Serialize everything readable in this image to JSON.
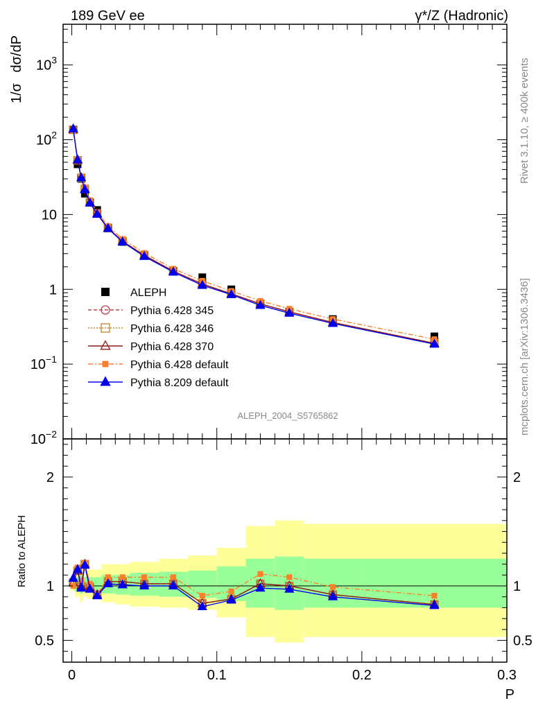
{
  "header": {
    "left": "189 GeV ee",
    "right": "γ*/Z (Hadronic)"
  },
  "side_labels": {
    "rivet": "Rivet 3.1.10, ≥ 400k events",
    "mcplots": "mcplots.cern.ch [arXiv:1306.3436]"
  },
  "analysis_tag": "ALEPH_2004_S5765862",
  "colors": {
    "aleph": "#000000",
    "p345": "#c0404a",
    "p346": "#b8862b",
    "p370": "#8b1a1a",
    "p6def": "#ff7f2a",
    "p8def": "#0000ee",
    "band_yellow": "#ffff99",
    "band_green": "#99ff99"
  },
  "chart_data": [
    {
      "type": "line",
      "panel": "main",
      "ylabel_prefix": "1/σ",
      "ylabel_main": "dσ/dP",
      "yscale": "log",
      "ylim": [
        0.01,
        3500
      ],
      "xlim": [
        -0.006,
        0.3
      ],
      "ytick_labels": [
        {
          "v": 1000,
          "base": "10",
          "exp": "3"
        },
        {
          "v": 100,
          "base": "10",
          "exp": "2"
        },
        {
          "v": 10,
          "base": "10",
          "exp": ""
        },
        {
          "v": 1,
          "base": "1",
          "exp": ""
        },
        {
          "v": 0.1,
          "base": "10",
          "exp": "−1"
        },
        {
          "v": 0.01,
          "base": "10",
          "exp": "−2"
        }
      ],
      "legend_position": "lower-left",
      "x": [
        0.001,
        0.004,
        0.0065,
        0.009,
        0.0125,
        0.0175,
        0.025,
        0.035,
        0.05,
        0.07,
        0.09,
        0.11,
        0.13,
        0.15,
        0.18,
        0.25
      ],
      "series": [
        {
          "name": "ALEPH",
          "key": "aleph",
          "marker": "square-filled",
          "values": [
            135,
            47,
            30,
            19,
            14.5,
            11.5,
            6.5,
            4.3,
            2.8,
            1.75,
            1.45,
            1.0,
            0.63,
            0.5,
            0.4,
            0.235
          ]
        },
        {
          "name": "Pythia 6.428 345",
          "key": "p345",
          "marker": "circle-open",
          "dash": "5,3",
          "values": [
            136,
            53,
            31,
            22,
            14.5,
            10.3,
            6.6,
            4.4,
            2.85,
            1.75,
            1.18,
            0.87,
            0.64,
            0.5,
            0.36,
            0.19
          ]
        },
        {
          "name": "Pythia 6.428 346",
          "key": "p346",
          "marker": "square-open",
          "dash": "2,2",
          "values": [
            136,
            53,
            31,
            22,
            14.5,
            10.3,
            6.6,
            4.4,
            2.85,
            1.75,
            1.18,
            0.87,
            0.64,
            0.5,
            0.36,
            0.19
          ]
        },
        {
          "name": "Pythia 6.428 370",
          "key": "p370",
          "marker": "triangle-open",
          "dash": "",
          "values": [
            136,
            53,
            31,
            22,
            14.5,
            10.3,
            6.6,
            4.4,
            2.85,
            1.75,
            1.18,
            0.87,
            0.64,
            0.5,
            0.36,
            0.19
          ]
        },
        {
          "name": "Pythia 6.428 default",
          "key": "p6def",
          "marker": "square-small-filled",
          "dash": "7,3,2,3",
          "values": [
            133,
            55,
            32,
            23,
            15.5,
            10.8,
            7.0,
            4.7,
            3.05,
            1.88,
            1.3,
            0.95,
            0.7,
            0.55,
            0.4,
            0.215
          ]
        },
        {
          "name": "Pythia 8.209 default",
          "key": "p8def",
          "marker": "triangle-filled",
          "dash": "",
          "values": [
            140,
            54,
            31,
            21.5,
            14.3,
            10.1,
            6.5,
            4.3,
            2.75,
            1.7,
            1.13,
            0.85,
            0.61,
            0.48,
            0.35,
            0.185
          ]
        }
      ]
    },
    {
      "type": "line",
      "panel": "ratio",
      "xlabel": "P",
      "ylabel": "Ratio to ALEPH",
      "ylim": [
        0.3,
        2.35
      ],
      "xlim": [
        -0.006,
        0.3
      ],
      "yticks": [
        0.5,
        1,
        2
      ],
      "ytick_labels": [
        "0.5",
        "1",
        "2"
      ],
      "xticks": [
        0,
        0.1,
        0.2,
        0.3
      ],
      "xtick_labels": [
        "0",
        "0.1",
        "0.2",
        "0.3"
      ],
      "reference_line": 1,
      "bands": {
        "x_edges": [
          0.0,
          0.002,
          0.0055,
          0.0075,
          0.0105,
          0.0145,
          0.0205,
          0.03,
          0.04,
          0.06,
          0.08,
          0.1,
          0.12,
          0.14,
          0.16,
          0.2,
          0.3
        ],
        "yellow_low": [
          0.95,
          0.9,
          0.85,
          0.9,
          0.88,
          0.88,
          0.85,
          0.83,
          0.81,
          0.8,
          0.78,
          0.71,
          0.53,
          0.48,
          0.53,
          0.53
        ],
        "yellow_high": [
          1.05,
          1.15,
          1.2,
          1.15,
          1.15,
          1.15,
          1.2,
          1.2,
          1.22,
          1.25,
          1.28,
          1.35,
          1.55,
          1.6,
          1.57,
          1.57
        ],
        "green_low": [
          0.98,
          0.95,
          0.93,
          0.95,
          0.94,
          0.93,
          0.93,
          0.92,
          0.91,
          0.9,
          0.89,
          0.86,
          0.8,
          0.78,
          0.8,
          0.8
        ],
        "green_high": [
          1.02,
          1.08,
          1.1,
          1.08,
          1.08,
          1.08,
          1.1,
          1.1,
          1.12,
          1.13,
          1.14,
          1.18,
          1.25,
          1.27,
          1.25,
          1.25
        ]
      },
      "series": [
        {
          "name": "Pythia 6.428 345",
          "key": "p345",
          "marker": "circle-open",
          "dash": "5,3",
          "values": [
            1.03,
            1.14,
            1.0,
            1.2,
            0.99,
            0.92,
            1.04,
            1.04,
            1.02,
            1.02,
            0.84,
            0.88,
            1.02,
            1.0,
            0.92,
            0.83
          ]
        },
        {
          "name": "Pythia 6.428 346",
          "key": "p346",
          "marker": "square-open",
          "dash": "2,2",
          "values": [
            1.03,
            1.14,
            1.0,
            1.2,
            0.99,
            0.92,
            1.04,
            1.04,
            1.02,
            1.02,
            0.84,
            0.88,
            1.02,
            1.0,
            0.92,
            0.83
          ]
        },
        {
          "name": "Pythia 6.428 370",
          "key": "p370",
          "marker": "triangle-open",
          "dash": "",
          "values": [
            1.03,
            1.14,
            1.0,
            1.2,
            0.99,
            0.92,
            1.04,
            1.04,
            1.02,
            1.02,
            0.84,
            0.88,
            1.02,
            1.0,
            0.92,
            0.83
          ]
        },
        {
          "name": "Pythia 6.428 default",
          "key": "p6def",
          "marker": "square-small-filled",
          "dash": "7,3,2,3",
          "values": [
            1.0,
            1.17,
            1.05,
            1.21,
            1.02,
            0.92,
            1.08,
            1.08,
            1.08,
            1.08,
            0.91,
            0.95,
            1.11,
            1.08,
            0.99,
            0.91
          ]
        },
        {
          "name": "Pythia 8.209 default",
          "key": "p8def",
          "marker": "triangle-filled",
          "dash": "",
          "values": [
            1.07,
            1.15,
            0.98,
            1.19,
            0.97,
            0.91,
            1.02,
            1.01,
            1.0,
            1.0,
            0.81,
            0.87,
            0.98,
            0.97,
            0.9,
            0.82
          ]
        }
      ]
    }
  ]
}
